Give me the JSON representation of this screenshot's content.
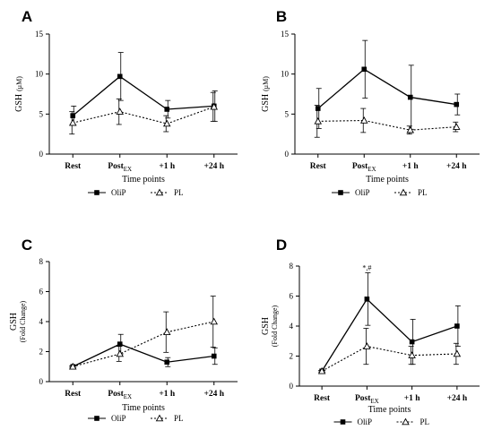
{
  "chart_data": [
    {
      "type": "line",
      "panel": "A",
      "categories": [
        "Rest",
        "Post",
        "+1 h",
        "+24 h"
      ],
      "category_subscript": [
        "",
        "EX",
        "",
        ""
      ],
      "xlabel": "Time points",
      "ylabel": "GSH",
      "ylabel_unit": "(μM)",
      "ylim": [
        0,
        15
      ],
      "yticks": [
        "0",
        "5",
        "10",
        "15"
      ],
      "series": [
        {
          "name": "OliP",
          "values": [
            4.8,
            9.7,
            5.6,
            6.0
          ],
          "err": [
            1.2,
            3.0,
            1.1,
            1.9
          ],
          "marker": "square",
          "line": "solid"
        },
        {
          "name": "PL",
          "values": [
            3.9,
            5.3,
            3.8,
            5.9
          ],
          "err": [
            1.4,
            1.6,
            1.0,
            1.8
          ],
          "marker": "triangle",
          "line": "dotted"
        }
      ],
      "annotations": []
    },
    {
      "type": "line",
      "panel": "B",
      "categories": [
        "Rest",
        "Post",
        "+1 h",
        "+24 h"
      ],
      "category_subscript": [
        "",
        "EX",
        "",
        ""
      ],
      "xlabel": "Time points",
      "ylabel": "GSH",
      "ylabel_unit": "(μM)",
      "ylim": [
        0,
        15
      ],
      "yticks": [
        "0",
        "5",
        "10",
        "15"
      ],
      "series": [
        {
          "name": "OliP",
          "values": [
            5.7,
            10.6,
            7.1,
            6.2
          ],
          "err": [
            2.5,
            3.6,
            4.0,
            1.3
          ],
          "marker": "square",
          "line": "solid"
        },
        {
          "name": "PL",
          "values": [
            4.1,
            4.2,
            3.0,
            3.4
          ],
          "err": [
            2.0,
            1.5,
            0.5,
            0.6
          ],
          "marker": "triangle",
          "line": "dotted"
        }
      ],
      "annotations": []
    },
    {
      "type": "line",
      "panel": "C",
      "categories": [
        "Rest",
        "Post",
        "+1 h",
        "+24 h"
      ],
      "category_subscript": [
        "",
        "EX",
        "",
        ""
      ],
      "xlabel": "Time points",
      "ylabel": "GSH",
      "ylabel_unit": "(Fold Change)",
      "ylim": [
        0,
        8
      ],
      "yticks": [
        "0",
        "2",
        "4",
        "6",
        "8"
      ],
      "series": [
        {
          "name": "OliP",
          "values": [
            1.0,
            2.5,
            1.3,
            1.7
          ],
          "err": [
            0.05,
            0.65,
            0.3,
            0.55
          ],
          "marker": "square",
          "line": "solid"
        },
        {
          "name": "PL",
          "values": [
            1.0,
            1.85,
            3.3,
            4.0
          ],
          "err": [
            0.05,
            0.5,
            1.35,
            1.7
          ],
          "marker": "triangle",
          "line": "dotted"
        }
      ],
      "annotations": []
    },
    {
      "type": "line",
      "panel": "D",
      "categories": [
        "Rest",
        "Post",
        "+1 h",
        "+24 h"
      ],
      "category_subscript": [
        "",
        "EX",
        "",
        ""
      ],
      "xlabel": "Time points",
      "ylabel": "GSH",
      "ylabel_unit": "(Fold Change)",
      "ylim": [
        0,
        8
      ],
      "yticks": [
        "0",
        "2",
        "4",
        "6",
        "8"
      ],
      "series": [
        {
          "name": "OliP",
          "values": [
            1.0,
            5.8,
            2.95,
            4.0
          ],
          "err": [
            0.05,
            1.75,
            1.5,
            1.35
          ],
          "marker": "square",
          "line": "solid"
        },
        {
          "name": "PL",
          "values": [
            1.0,
            2.65,
            2.05,
            2.15
          ],
          "err": [
            0.05,
            1.2,
            0.6,
            0.7
          ],
          "marker": "triangle",
          "line": "dotted"
        }
      ],
      "annotations": [
        {
          "text": "*,#",
          "category_index": 1,
          "value": 7.6
        }
      ]
    }
  ],
  "legend": {
    "items": [
      {
        "label": "OliP",
        "marker": "square",
        "line": "solid"
      },
      {
        "label": "PL",
        "marker": "triangle",
        "line": "dotted"
      }
    ]
  }
}
